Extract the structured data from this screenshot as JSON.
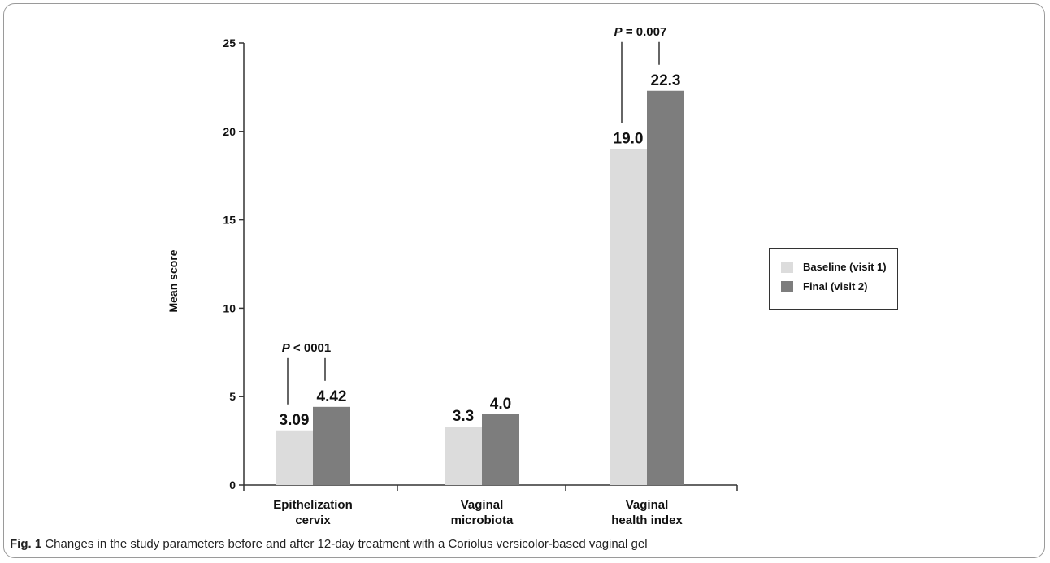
{
  "chart_data": {
    "type": "bar",
    "categories": [
      [
        "Epithelization",
        "cervix"
      ],
      [
        "Vaginal",
        "microbiota"
      ],
      [
        "Vaginal",
        "health index"
      ]
    ],
    "series": [
      {
        "name": "Baseline (visit 1)",
        "color": "#dcdcdc",
        "values": [
          3.09,
          3.3,
          19.0
        ],
        "labels": [
          "3.09",
          "3.3",
          "19.0"
        ]
      },
      {
        "name": "Final (visit 2)",
        "color": "#7d7d7d",
        "values": [
          4.42,
          4.0,
          22.3
        ],
        "labels": [
          "4.42",
          "4.0",
          "22.3"
        ]
      }
    ],
    "ylabel": "Mean score",
    "xlabel": "",
    "ylim": [
      0,
      25
    ],
    "yticks": [
      "0",
      "5",
      "10",
      "15",
      "20",
      "25"
    ],
    "legend_position": "right",
    "grid": false,
    "annotations": [
      {
        "category_index": 0,
        "italic": "P",
        "text": " < 0001"
      },
      {
        "category_index": 2,
        "italic": "P",
        "text": " = 0.007"
      }
    ]
  },
  "caption": {
    "label": "Fig. 1",
    "text": " Changes in the study parameters before and after 12-day treatment with a Coriolus versicolor-based vaginal gel"
  }
}
